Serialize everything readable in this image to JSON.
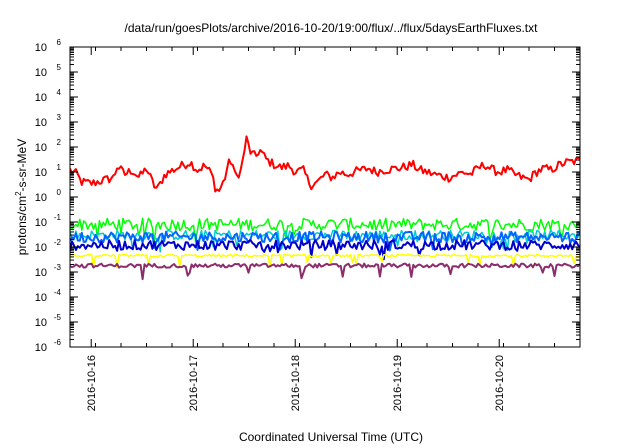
{
  "chart_data": {
    "type": "line",
    "title": "/data/run/goesPlots/archive/2016-10-20/19:00/flux/../flux/5daysEarthFluxes.txt",
    "xlabel": "Coordinated Universal Time (UTC)",
    "ylabel": {
      "pre": "protons/cm",
      "sup": "2",
      "post": "-s-sr-MeV"
    },
    "y_scale": "log",
    "ylim": [
      1e-06,
      1000000.0
    ],
    "y_ticks": [
      {
        "exp": "-6"
      },
      {
        "exp": "-5"
      },
      {
        "exp": "-4"
      },
      {
        "exp": "-3"
      },
      {
        "exp": "-2"
      },
      {
        "exp": "-1"
      },
      {
        "exp": "0"
      },
      {
        "exp": "1"
      },
      {
        "exp": "2"
      },
      {
        "exp": "3"
      },
      {
        "exp": "4"
      },
      {
        "exp": "5"
      },
      {
        "exp": "6"
      }
    ],
    "y_tick_base": "10",
    "x_range_days": [
      "2016-10-15T19:00",
      "2016-10-20T19:00"
    ],
    "x_ticks": [
      {
        "label": "2016-10-16",
        "day": 0.208
      },
      {
        "label": "2016-10-17",
        "day": 1.208
      },
      {
        "label": "2016-10-18",
        "day": 2.208
      },
      {
        "label": "2016-10-19",
        "day": 3.208
      },
      {
        "label": "2016-10-20",
        "day": 4.208
      }
    ],
    "grid": false,
    "legend": "none",
    "series": [
      {
        "color": "#ff0000",
        "width": 2,
        "noise": 0.18,
        "points": [
          [
            0,
            12
          ],
          [
            0.1,
            8
          ],
          [
            0.15,
            4
          ],
          [
            0.3,
            3.5
          ],
          [
            0.5,
            5
          ],
          [
            0.6,
            6
          ],
          [
            0.65,
            18
          ],
          [
            0.75,
            8
          ],
          [
            0.85,
            12
          ],
          [
            0.95,
            6
          ],
          [
            1.05,
            14
          ],
          [
            1.15,
            3
          ],
          [
            1.2,
            2
          ],
          [
            1.3,
            8
          ],
          [
            1.5,
            16
          ],
          [
            1.65,
            25
          ],
          [
            1.75,
            12
          ],
          [
            1.85,
            18
          ],
          [
            1.95,
            8
          ],
          [
            2.0,
            2
          ],
          [
            2.05,
            1.8
          ],
          [
            2.12,
            5
          ],
          [
            2.17,
            20
          ],
          [
            2.22,
            30
          ],
          [
            2.27,
            6
          ],
          [
            2.35,
            12
          ],
          [
            2.42,
            220
          ],
          [
            2.48,
            60
          ],
          [
            2.55,
            40
          ],
          [
            2.6,
            80
          ],
          [
            2.7,
            30
          ],
          [
            2.8,
            20
          ],
          [
            2.9,
            15
          ],
          [
            3.0,
            18
          ],
          [
            3.1,
            10
          ],
          [
            3.2,
            12
          ],
          [
            3.3,
            3
          ],
          [
            3.4,
            4
          ],
          [
            3.5,
            8
          ],
          [
            3.6,
            6
          ],
          [
            3.7,
            10
          ],
          [
            3.8,
            8
          ],
          [
            3.9,
            10
          ],
          [
            4.0,
            12
          ],
          [
            4.1,
            14
          ],
          [
            4.2,
            10
          ],
          [
            4.3,
            12
          ],
          [
            4.5,
            14
          ],
          [
            4.6,
            16
          ],
          [
            4.7,
            20
          ],
          [
            4.8,
            12
          ],
          [
            4.9,
            10
          ],
          [
            5.0,
            8
          ],
          [
            5.2,
            6
          ],
          [
            5.4,
            10
          ],
          [
            5.5,
            8
          ],
          [
            5.6,
            14
          ],
          [
            5.7,
            20
          ],
          [
            5.8,
            12
          ],
          [
            5.9,
            10
          ],
          [
            6.0,
            12
          ],
          [
            6.1,
            8
          ],
          [
            6.2,
            6
          ],
          [
            6.3,
            5
          ],
          [
            6.4,
            10
          ],
          [
            6.5,
            14
          ],
          [
            6.6,
            12
          ],
          [
            6.7,
            18
          ],
          [
            6.8,
            24
          ],
          [
            6.9,
            26
          ],
          [
            7.0,
            28
          ]
        ]
      },
      {
        "color": "#00ff00",
        "width": 1.5,
        "noise": 0.25,
        "points": [
          [
            0,
            0.08
          ],
          [
            7,
            0.08
          ]
        ]
      },
      {
        "color": "#00cccc",
        "width": 1.5,
        "noise": 0.2,
        "points": [
          [
            0,
            0.03
          ],
          [
            7,
            0.03
          ]
        ]
      },
      {
        "color": "#0066ff",
        "width": 2,
        "noise": 0.22,
        "points": [
          [
            0,
            0.025
          ],
          [
            7,
            0.025
          ]
        ]
      },
      {
        "color": "#0000cc",
        "width": 2,
        "noise": 0.2,
        "points": [
          [
            0,
            0.012
          ],
          [
            7,
            0.012
          ]
        ]
      },
      {
        "color": "#ffff00",
        "width": 1.5,
        "noise": 0.05,
        "points": [
          [
            0,
            0.0045
          ],
          [
            7,
            0.0045
          ]
        ]
      },
      {
        "color": "#8b2d6b",
        "width": 2,
        "noise": 0.08,
        "points": [
          [
            0,
            0.0018
          ],
          [
            7,
            0.0018
          ]
        ]
      }
    ]
  }
}
